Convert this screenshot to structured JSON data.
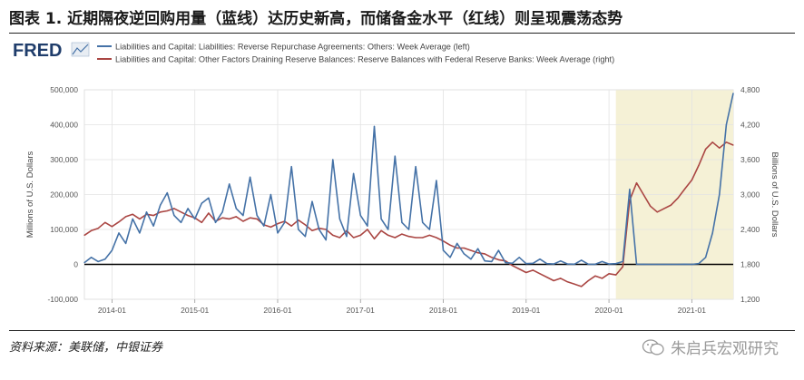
{
  "header": {
    "title": "图表 1. 近期隔夜逆回购用量（蓝线）达历史新高，而储备金水平（红线）则呈现震荡态势"
  },
  "footer": {
    "source": "资料来源：美联储，中银证券",
    "watermark": "朱启兵宏观研究"
  },
  "colors": {
    "blue": "#4572a7",
    "red": "#aa4643",
    "recession": "#f5f1d6",
    "zero_line": "#000000",
    "grid": "#e3e3e3"
  },
  "chart_data": {
    "type": "line",
    "logo": "FRED",
    "legend_position": "top-left",
    "grid": true,
    "xlabel": "",
    "x_ticks": [
      "2014-01",
      "2015-01",
      "2016-01",
      "2017-01",
      "2018-01",
      "2019-01",
      "2020-01",
      "2021-01"
    ],
    "x_range": [
      "2013-09",
      "2021-07"
    ],
    "ylabel_left": "Millions of U.S. Dollars",
    "ylabel_right": "Billions of U.S. Dollars",
    "ylim_left": [
      -100000,
      500000
    ],
    "ylim_right": [
      1200,
      4800
    ],
    "y_ticks_left": [
      "-100,000",
      "0",
      "100,000",
      "200,000",
      "300,000",
      "400,000",
      "500,000"
    ],
    "y_ticks_right": [
      "1,200",
      "1,800",
      "2,400",
      "3,000",
      "3,600",
      "4,200",
      "4,800"
    ],
    "shaded_period": [
      "2020-02",
      "2021-07"
    ],
    "series": [
      {
        "name": "Liabilities and Capital: Liabilities: Reverse Repurchase Agreements: Others: Week Average (left)",
        "axis": "left",
        "points": [
          [
            "2013-09",
            5000
          ],
          [
            "2013-10",
            20000
          ],
          [
            "2013-11",
            8000
          ],
          [
            "2013-12",
            15000
          ],
          [
            "2014-01",
            40000
          ],
          [
            "2014-02",
            90000
          ],
          [
            "2014-03",
            60000
          ],
          [
            "2014-04",
            130000
          ],
          [
            "2014-05",
            90000
          ],
          [
            "2014-06",
            150000
          ],
          [
            "2014-07",
            110000
          ],
          [
            "2014-08",
            170000
          ],
          [
            "2014-09",
            205000
          ],
          [
            "2014-10",
            140000
          ],
          [
            "2014-11",
            120000
          ],
          [
            "2014-12",
            160000
          ],
          [
            "2015-01",
            130000
          ],
          [
            "2015-02",
            175000
          ],
          [
            "2015-03",
            190000
          ],
          [
            "2015-04",
            120000
          ],
          [
            "2015-05",
            150000
          ],
          [
            "2015-06",
            230000
          ],
          [
            "2015-07",
            160000
          ],
          [
            "2015-08",
            140000
          ],
          [
            "2015-09",
            250000
          ],
          [
            "2015-10",
            140000
          ],
          [
            "2015-11",
            110000
          ],
          [
            "2015-12",
            200000
          ],
          [
            "2016-01",
            90000
          ],
          [
            "2016-02",
            120000
          ],
          [
            "2016-03",
            280000
          ],
          [
            "2016-04",
            100000
          ],
          [
            "2016-05",
            80000
          ],
          [
            "2016-06",
            180000
          ],
          [
            "2016-07",
            100000
          ],
          [
            "2016-08",
            70000
          ],
          [
            "2016-09",
            300000
          ],
          [
            "2016-10",
            130000
          ],
          [
            "2016-11",
            80000
          ],
          [
            "2016-12",
            260000
          ],
          [
            "2017-01",
            140000
          ],
          [
            "2017-02",
            110000
          ],
          [
            "2017-03",
            395000
          ],
          [
            "2017-04",
            130000
          ],
          [
            "2017-05",
            100000
          ],
          [
            "2017-06",
            310000
          ],
          [
            "2017-07",
            120000
          ],
          [
            "2017-08",
            100000
          ],
          [
            "2017-09",
            280000
          ],
          [
            "2017-10",
            120000
          ],
          [
            "2017-11",
            100000
          ],
          [
            "2017-12",
            240000
          ],
          [
            "2018-01",
            40000
          ],
          [
            "2018-02",
            20000
          ],
          [
            "2018-03",
            60000
          ],
          [
            "2018-04",
            30000
          ],
          [
            "2018-05",
            15000
          ],
          [
            "2018-06",
            45000
          ],
          [
            "2018-07",
            10000
          ],
          [
            "2018-08",
            8000
          ],
          [
            "2018-09",
            40000
          ],
          [
            "2018-10",
            5000
          ],
          [
            "2018-11",
            3000
          ],
          [
            "2018-12",
            20000
          ],
          [
            "2019-01",
            2000
          ],
          [
            "2019-02",
            3000
          ],
          [
            "2019-03",
            15000
          ],
          [
            "2019-04",
            2000
          ],
          [
            "2019-05",
            1000
          ],
          [
            "2019-06",
            10000
          ],
          [
            "2019-07",
            1000
          ],
          [
            "2019-08",
            500
          ],
          [
            "2019-09",
            12000
          ],
          [
            "2019-10",
            500
          ],
          [
            "2019-11",
            300
          ],
          [
            "2019-12",
            8000
          ],
          [
            "2020-01",
            1000
          ],
          [
            "2020-02",
            2000
          ],
          [
            "2020-03",
            8000
          ],
          [
            "2020-04",
            215000
          ],
          [
            "2020-05",
            500
          ],
          [
            "2020-06",
            200
          ],
          [
            "2020-07",
            100
          ],
          [
            "2020-08",
            100
          ],
          [
            "2020-09",
            100
          ],
          [
            "2020-10",
            100
          ],
          [
            "2020-11",
            100
          ],
          [
            "2020-12",
            500
          ],
          [
            "2021-01",
            100
          ],
          [
            "2021-02",
            2000
          ],
          [
            "2021-03",
            20000
          ],
          [
            "2021-04",
            90000
          ],
          [
            "2021-05",
            200000
          ],
          [
            "2021-06",
            400000
          ],
          [
            "2021-07",
            490000
          ]
        ]
      },
      {
        "name": "Liabilities and Capital: Other Factors Draining Reserve Balances: Reserve Balances with Federal Reserve Banks: Week Average (right)",
        "axis": "right",
        "points": [
          [
            "2013-09",
            2300
          ],
          [
            "2013-10",
            2380
          ],
          [
            "2013-11",
            2420
          ],
          [
            "2013-12",
            2520
          ],
          [
            "2014-01",
            2450
          ],
          [
            "2014-02",
            2530
          ],
          [
            "2014-03",
            2620
          ],
          [
            "2014-04",
            2660
          ],
          [
            "2014-05",
            2580
          ],
          [
            "2014-06",
            2660
          ],
          [
            "2014-07",
            2640
          ],
          [
            "2014-08",
            2700
          ],
          [
            "2014-09",
            2720
          ],
          [
            "2014-10",
            2760
          ],
          [
            "2014-11",
            2700
          ],
          [
            "2014-12",
            2640
          ],
          [
            "2015-01",
            2600
          ],
          [
            "2015-02",
            2520
          ],
          [
            "2015-03",
            2680
          ],
          [
            "2015-04",
            2540
          ],
          [
            "2015-05",
            2600
          ],
          [
            "2015-06",
            2580
          ],
          [
            "2015-07",
            2620
          ],
          [
            "2015-08",
            2540
          ],
          [
            "2015-09",
            2600
          ],
          [
            "2015-10",
            2580
          ],
          [
            "2015-11",
            2480
          ],
          [
            "2015-12",
            2440
          ],
          [
            "2016-01",
            2500
          ],
          [
            "2016-02",
            2540
          ],
          [
            "2016-03",
            2460
          ],
          [
            "2016-04",
            2560
          ],
          [
            "2016-05",
            2480
          ],
          [
            "2016-06",
            2380
          ],
          [
            "2016-07",
            2420
          ],
          [
            "2016-08",
            2400
          ],
          [
            "2016-09",
            2300
          ],
          [
            "2016-10",
            2260
          ],
          [
            "2016-11",
            2380
          ],
          [
            "2016-12",
            2260
          ],
          [
            "2017-01",
            2300
          ],
          [
            "2017-02",
            2400
          ],
          [
            "2017-03",
            2240
          ],
          [
            "2017-04",
            2380
          ],
          [
            "2017-05",
            2300
          ],
          [
            "2017-06",
            2260
          ],
          [
            "2017-07",
            2320
          ],
          [
            "2017-08",
            2280
          ],
          [
            "2017-09",
            2260
          ],
          [
            "2017-10",
            2260
          ],
          [
            "2017-11",
            2300
          ],
          [
            "2017-12",
            2260
          ],
          [
            "2018-01",
            2200
          ],
          [
            "2018-02",
            2130
          ],
          [
            "2018-03",
            2080
          ],
          [
            "2018-04",
            2080
          ],
          [
            "2018-05",
            2040
          ],
          [
            "2018-06",
            2000
          ],
          [
            "2018-07",
            1980
          ],
          [
            "2018-08",
            1920
          ],
          [
            "2018-09",
            1880
          ],
          [
            "2018-10",
            1860
          ],
          [
            "2018-11",
            1780
          ],
          [
            "2018-12",
            1720
          ],
          [
            "2019-01",
            1660
          ],
          [
            "2019-02",
            1700
          ],
          [
            "2019-03",
            1640
          ],
          [
            "2019-04",
            1580
          ],
          [
            "2019-05",
            1520
          ],
          [
            "2019-06",
            1560
          ],
          [
            "2019-07",
            1500
          ],
          [
            "2019-08",
            1460
          ],
          [
            "2019-09",
            1420
          ],
          [
            "2019-10",
            1520
          ],
          [
            "2019-11",
            1600
          ],
          [
            "2019-12",
            1560
          ],
          [
            "2020-01",
            1640
          ],
          [
            "2020-02",
            1620
          ],
          [
            "2020-03",
            1760
          ],
          [
            "2020-04",
            2900
          ],
          [
            "2020-05",
            3200
          ],
          [
            "2020-06",
            3000
          ],
          [
            "2020-07",
            2800
          ],
          [
            "2020-08",
            2700
          ],
          [
            "2020-09",
            2760
          ],
          [
            "2020-10",
            2820
          ],
          [
            "2020-11",
            2940
          ],
          [
            "2020-12",
            3100
          ],
          [
            "2021-01",
            3250
          ],
          [
            "2021-02",
            3500
          ],
          [
            "2021-03",
            3780
          ],
          [
            "2021-04",
            3900
          ],
          [
            "2021-05",
            3800
          ],
          [
            "2021-06",
            3900
          ],
          [
            "2021-07",
            3850
          ]
        ]
      }
    ]
  }
}
